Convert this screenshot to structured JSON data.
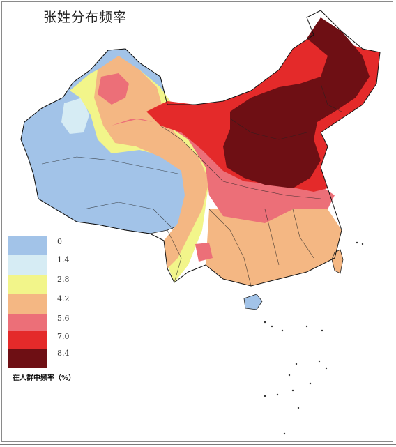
{
  "title": "张姓分布频率",
  "legend": {
    "caption": "在人群中频率（%）",
    "items": [
      {
        "label": "0",
        "color": "#a2c3e8"
      },
      {
        "label": "1.4",
        "color": "#d6ecf4"
      },
      {
        "label": "2.8",
        "color": "#f2f58a"
      },
      {
        "label": "4.2",
        "color": "#f4b783"
      },
      {
        "label": "5.6",
        "color": "#ec6f78"
      },
      {
        "label": "7.0",
        "color": "#e42a2a"
      },
      {
        "label": "8.4",
        "color": "#6e0f14"
      }
    ]
  }
}
